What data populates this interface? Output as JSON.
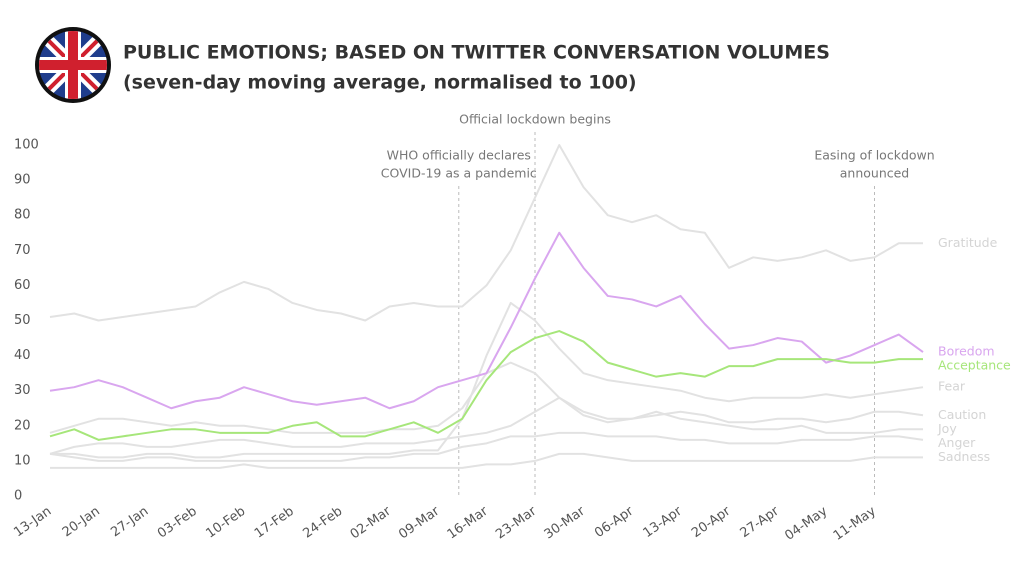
{
  "chart_data": {
    "type": "line",
    "title": "PUBLIC EMOTIONS; BASED ON TWITTER CONVERSATION VOLUMES",
    "subtitle": "(seven-day moving average, normalised to 100)",
    "categories": [
      "13-Jan",
      null,
      "20-Jan",
      null,
      "27-Jan",
      null,
      "03-Feb",
      null,
      "10-Feb",
      null,
      "17-Feb",
      null,
      "24-Feb",
      null,
      "02-Mar",
      null,
      "09-Mar",
      null,
      "16-Mar",
      null,
      "23-Mar",
      null,
      "30-Mar",
      null,
      "06-Apr",
      null,
      "13-Apr",
      null,
      "20-Apr",
      null,
      "27-Apr",
      null,
      "04-May",
      null,
      "11-May",
      null,
      null
    ],
    "ylim": [
      0,
      100
    ],
    "yticks": [
      0,
      10,
      20,
      30,
      40,
      50,
      60,
      70,
      80,
      90,
      100
    ],
    "grid": false,
    "annotations": [
      {
        "x": "12-Mar",
        "text": [
          "WHO officially declares",
          "COVID-19 as a pandemic"
        ]
      },
      {
        "x": "23-Mar",
        "text": [
          "Official lockdown begins"
        ]
      },
      {
        "x": "11-May",
        "text": [
          "Easing of lockdown",
          "announced"
        ]
      }
    ],
    "series": [
      {
        "name": "Gratitude",
        "color": "#e2e2e2",
        "values": [
          51,
          52,
          50,
          51,
          52,
          53,
          54,
          58,
          61,
          59,
          55,
          53,
          52,
          50,
          54,
          55,
          54,
          54,
          60,
          70,
          85,
          100,
          88,
          80,
          78,
          80,
          76,
          75,
          65,
          68,
          67,
          68,
          70,
          67,
          68,
          72,
          72
        ]
      },
      {
        "name": "Fear",
        "color": "#e2e2e2",
        "values": [
          12,
          12,
          11,
          11,
          12,
          12,
          11,
          11,
          12,
          12,
          12,
          12,
          12,
          12,
          12,
          13,
          13,
          22,
          40,
          55,
          50,
          42,
          35,
          33,
          32,
          31,
          30,
          28,
          27,
          28,
          28,
          28,
          29,
          28,
          29,
          30,
          31
        ]
      },
      {
        "name": "Caution",
        "color": "#e2e2e2",
        "values": [
          18,
          20,
          22,
          22,
          21,
          20,
          21,
          20,
          20,
          19,
          18,
          18,
          18,
          18,
          19,
          19,
          20,
          25,
          35,
          38,
          35,
          28,
          24,
          22,
          22,
          23,
          24,
          23,
          21,
          21,
          22,
          22,
          21,
          22,
          24,
          24,
          23
        ]
      },
      {
        "name": "Joy",
        "color": "#e2e2e2",
        "values": [
          12,
          14,
          15,
          15,
          14,
          14,
          15,
          16,
          16,
          15,
          14,
          14,
          14,
          15,
          15,
          15,
          16,
          17,
          18,
          20,
          24,
          28,
          23,
          21,
          22,
          24,
          22,
          21,
          20,
          19,
          19,
          20,
          18,
          18,
          18,
          19,
          19
        ]
      },
      {
        "name": "Anger",
        "color": "#e2e2e2",
        "values": [
          12,
          11,
          10,
          10,
          11,
          11,
          10,
          10,
          10,
          10,
          10,
          10,
          10,
          11,
          11,
          12,
          12,
          14,
          15,
          17,
          17,
          18,
          18,
          17,
          17,
          17,
          16,
          16,
          15,
          15,
          15,
          16,
          16,
          16,
          17,
          17,
          16
        ]
      },
      {
        "name": "Sadness",
        "color": "#e2e2e2",
        "values": [
          8,
          8,
          8,
          8,
          8,
          8,
          8,
          8,
          9,
          8,
          8,
          8,
          8,
          8,
          8,
          8,
          8,
          8,
          9,
          9,
          10,
          12,
          12,
          11,
          10,
          10,
          10,
          10,
          10,
          10,
          10,
          10,
          10,
          10,
          11,
          11,
          11
        ]
      },
      {
        "name": "Boredom",
        "color": "#d9a6ef",
        "values": [
          30,
          31,
          33,
          31,
          28,
          25,
          27,
          28,
          31,
          29,
          27,
          26,
          27,
          28,
          25,
          27,
          31,
          33,
          35,
          48,
          62,
          75,
          65,
          57,
          56,
          54,
          57,
          49,
          42,
          43,
          45,
          44,
          38,
          40,
          43,
          46,
          41
        ]
      },
      {
        "name": "Acceptance",
        "color": "#a6e67a",
        "values": [
          17,
          19,
          16,
          17,
          18,
          19,
          19,
          18,
          18,
          18,
          20,
          21,
          17,
          17,
          19,
          21,
          18,
          22,
          33,
          41,
          45,
          47,
          44,
          38,
          36,
          34,
          35,
          34,
          37,
          37,
          39,
          39,
          39,
          38,
          38,
          39,
          39
        ]
      }
    ]
  }
}
